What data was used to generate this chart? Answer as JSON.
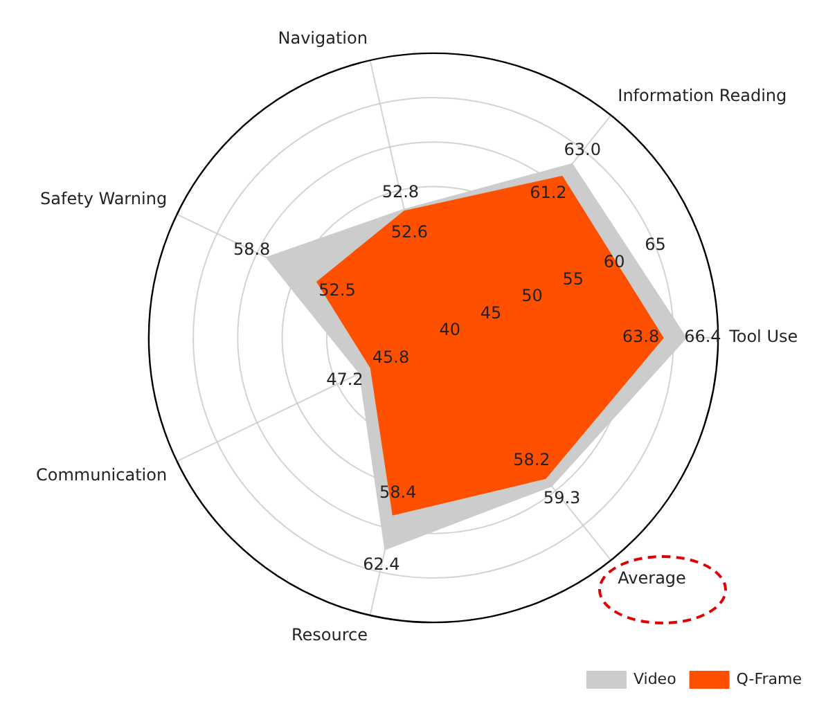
{
  "chart_data": {
    "type": "radar",
    "categories": [
      "Navigation",
      "Information Reading",
      "Tool Use",
      "Average",
      "Resource",
      "Communication",
      "Safety Warning"
    ],
    "series": [
      {
        "name": "Video",
        "color": "#cccccc",
        "values": [
          52.8,
          63.0,
          66.4,
          59.3,
          62.4,
          47.2,
          58.8
        ],
        "value_labels": [
          "52.8",
          "63.0",
          "66.4",
          "59.3",
          "62.4",
          "47.2",
          "58.8"
        ]
      },
      {
        "name": "Q-Frame",
        "color": "#ff5000",
        "values": [
          52.6,
          61.2,
          63.8,
          58.2,
          58.4,
          45.8,
          52.5
        ],
        "value_labels": [
          "52.6",
          "61.2",
          "63.8",
          "58.2",
          "58.4",
          "45.8",
          "52.5"
        ]
      }
    ],
    "ylim": [
      38,
      70
    ],
    "yticks": [
      40,
      45,
      50,
      55,
      60,
      65
    ],
    "grid": true,
    "legend": "bottom right"
  }
}
